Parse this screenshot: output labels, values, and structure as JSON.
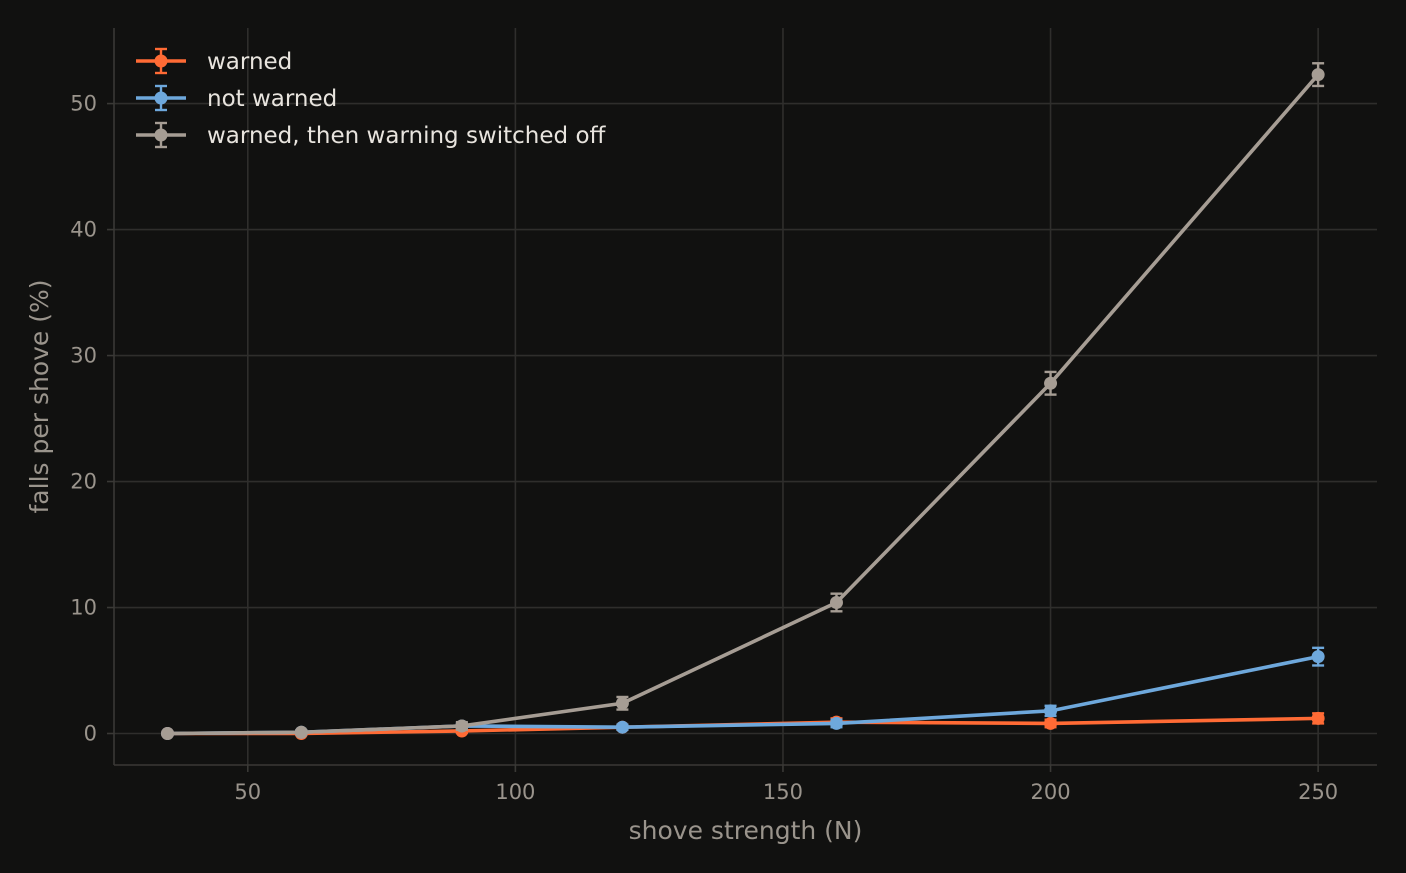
{
  "chart_data": {
    "type": "line",
    "xlabel": "shove strength (N)",
    "ylabel": "falls per shove (%)",
    "xlim": [
      25,
      261
    ],
    "ylim": [
      -2.5,
      56
    ],
    "xticks": [
      50,
      100,
      150,
      200,
      250
    ],
    "yticks": [
      0,
      10,
      20,
      30,
      40,
      50
    ],
    "grid": true,
    "legend_position": "top-left",
    "x": [
      35,
      60,
      90,
      120,
      160,
      200,
      250
    ],
    "series": [
      {
        "name": "warned",
        "color": "#ff6b35",
        "values": [
          0.0,
          0.0,
          0.2,
          0.5,
          0.9,
          0.8,
          1.2
        ],
        "errors": [
          0.1,
          0.1,
          0.15,
          0.2,
          0.3,
          0.3,
          0.4
        ]
      },
      {
        "name": "not warned",
        "color": "#6ea8dc",
        "values": [
          0.0,
          0.1,
          0.6,
          0.5,
          0.8,
          1.8,
          6.1
        ],
        "errors": [
          0.1,
          0.15,
          0.2,
          0.2,
          0.3,
          0.4,
          0.7
        ]
      },
      {
        "name": "warned, then warning switched off",
        "color": "#a69d94",
        "values": [
          0.0,
          0.1,
          0.6,
          2.4,
          10.4,
          27.8,
          52.3
        ],
        "errors": [
          0.1,
          0.15,
          0.3,
          0.5,
          0.7,
          0.9,
          0.9
        ]
      }
    ]
  }
}
